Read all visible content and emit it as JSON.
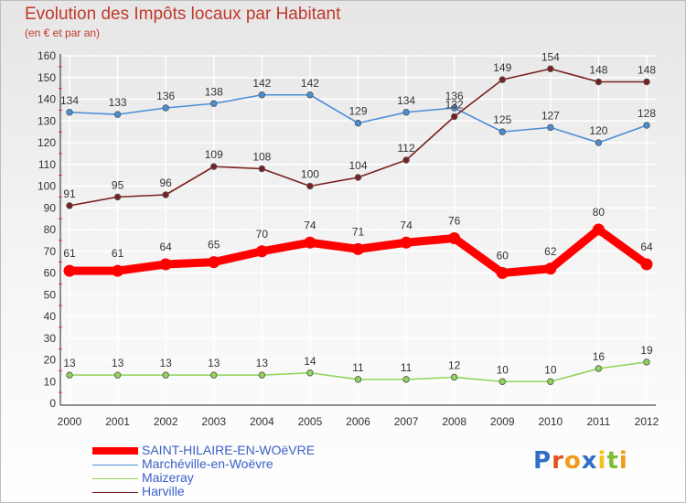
{
  "chart_data": {
    "type": "line",
    "title": "Evolution des Impôts locaux par Habitant",
    "subtitle": "(en € et par an)",
    "xlabel": "",
    "ylabel": "",
    "ylim": [
      0,
      160
    ],
    "yticks": [
      0,
      10,
      20,
      30,
      40,
      50,
      60,
      70,
      80,
      90,
      100,
      110,
      120,
      130,
      140,
      150,
      160
    ],
    "categories": [
      "2000",
      "2001",
      "2002",
      "2003",
      "2004",
      "2005",
      "2006",
      "2007",
      "2008",
      "2009",
      "2010",
      "2011",
      "2012"
    ],
    "grid": true,
    "legend_position": "bottom-left",
    "series": [
      {
        "name": "SAINT-HILAIRE-EN-WOëVRE",
        "color": "#ff0000",
        "values": [
          61,
          61,
          64,
          65,
          70,
          74,
          71,
          74,
          76,
          60,
          62,
          80,
          64
        ]
      },
      {
        "name": "Marchéville-en-Woëvre",
        "color": "#4a8ed6",
        "values": [
          134,
          133,
          136,
          138,
          142,
          142,
          129,
          134,
          136,
          125,
          127,
          120,
          128
        ]
      },
      {
        "name": "Maizeray",
        "color": "#8fd45a",
        "values": [
          13,
          13,
          13,
          13,
          13,
          14,
          11,
          11,
          12,
          10,
          10,
          16,
          19
        ]
      },
      {
        "name": "Harville",
        "color": "#7a2020",
        "values": [
          91,
          95,
          96,
          109,
          108,
          100,
          104,
          112,
          132,
          149,
          154,
          148,
          148
        ]
      }
    ]
  },
  "branding": {
    "text": "Proxiti",
    "letters": [
      "P",
      "r",
      "o",
      "x",
      "i",
      "t",
      "i"
    ],
    "letter_colors": [
      "#2e6fc7",
      "#e0541c",
      "#f29a1b",
      "#2e6fc7",
      "#f2c21b",
      "#7cbf2e",
      "#f29a1b"
    ]
  }
}
